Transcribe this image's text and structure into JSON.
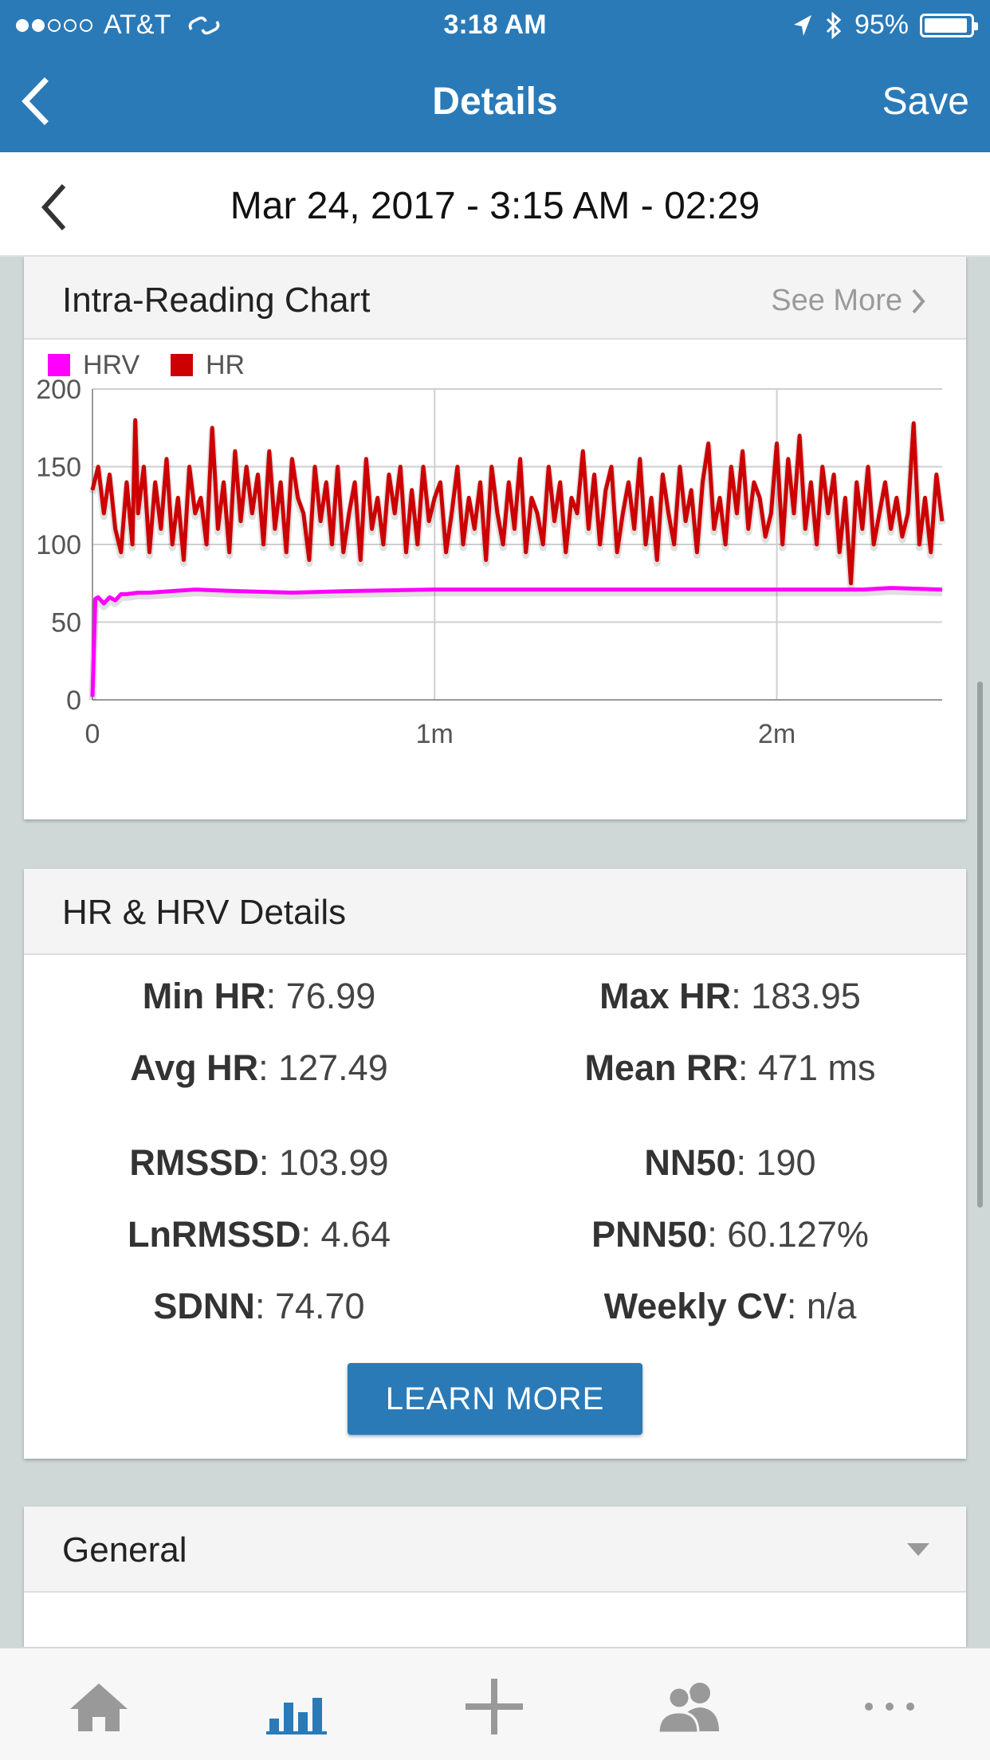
{
  "status": {
    "carrier": "AT&T",
    "time": "3:18 AM",
    "battery": "95%"
  },
  "nav": {
    "title": "Details",
    "save": "Save"
  },
  "reading": {
    "date": "Mar 24, 2017 - 3:15 AM - 02:29"
  },
  "chart_card": {
    "title": "Intra-Reading Chart",
    "see_more": "See More"
  },
  "chart_data": {
    "type": "line",
    "title": "",
    "xlabel": "",
    "ylabel": "",
    "ylim": [
      0,
      200
    ],
    "xlim_seconds": [
      0,
      149
    ],
    "yticks": [
      "0",
      "50",
      "100",
      "150",
      "200"
    ],
    "xticks": [
      {
        "t": 0,
        "label": "0"
      },
      {
        "t": 60,
        "label": "1m"
      },
      {
        "t": 120,
        "label": "2m"
      }
    ],
    "grid": true,
    "legend": "top-left",
    "series": [
      {
        "name": "HRV",
        "color": "#ff00ff",
        "x": [
          0,
          0.5,
          1,
          2,
          3,
          4,
          5,
          6,
          8,
          10,
          14,
          18,
          25,
          35,
          45,
          60,
          80,
          100,
          120,
          135,
          140,
          149
        ],
        "values": [
          2,
          65,
          66,
          62,
          66,
          64,
          68,
          68,
          69,
          69,
          70,
          71,
          70,
          69,
          70,
          71,
          71,
          71,
          71,
          71,
          72,
          71
        ]
      },
      {
        "name": "HR",
        "color": "#cc0000",
        "x": [
          0,
          1,
          2,
          3,
          4,
          5,
          6,
          7,
          7.5,
          8,
          9,
          10,
          11,
          12,
          13,
          14,
          15,
          16,
          17,
          18,
          19,
          20,
          21,
          22,
          23,
          24,
          25,
          26,
          27,
          28,
          29,
          30,
          31,
          32,
          33,
          34,
          35,
          36,
          37,
          38,
          39,
          40,
          41,
          42,
          43,
          44,
          45,
          46,
          47,
          48,
          49,
          50,
          51,
          52,
          53,
          54,
          55,
          56,
          57,
          58,
          59,
          60,
          61,
          62,
          63,
          64,
          65,
          66,
          67,
          68,
          69,
          70,
          71,
          72,
          73,
          74,
          75,
          76,
          77,
          78,
          79,
          80,
          81,
          82,
          83,
          84,
          85,
          86,
          87,
          88,
          89,
          90,
          91,
          92,
          93,
          94,
          95,
          96,
          97,
          98,
          99,
          100,
          101,
          102,
          103,
          104,
          105,
          106,
          107,
          108,
          109,
          110,
          111,
          112,
          113,
          114,
          115,
          116,
          117,
          118,
          119,
          120,
          121,
          122,
          123,
          124,
          125,
          126,
          127,
          128,
          129,
          130,
          131,
          132,
          133,
          134,
          135,
          136,
          137,
          138,
          139,
          140,
          141,
          142,
          143,
          144,
          145,
          146,
          147,
          148,
          149
        ],
        "values": [
          135,
          150,
          120,
          145,
          110,
          95,
          140,
          100,
          180,
          120,
          150,
          95,
          140,
          110,
          155,
          100,
          130,
          90,
          150,
          120,
          130,
          100,
          175,
          110,
          140,
          95,
          160,
          115,
          150,
          120,
          145,
          100,
          160,
          110,
          140,
          95,
          155,
          130,
          120,
          90,
          150,
          115,
          140,
          100,
          150,
          95,
          120,
          140,
          90,
          155,
          110,
          130,
          100,
          145,
          120,
          150,
          95,
          135,
          100,
          150,
          115,
          130,
          140,
          95,
          120,
          150,
          100,
          130,
          110,
          140,
          90,
          150,
          120,
          100,
          140,
          110,
          155,
          95,
          130,
          120,
          100,
          150,
          115,
          140,
          95,
          130,
          120,
          160,
          110,
          145,
          100,
          135,
          150,
          95,
          120,
          140,
          110,
          155,
          100,
          130,
          90,
          145,
          120,
          100,
          150,
          115,
          135,
          95,
          140,
          165,
          110,
          130,
          100,
          150,
          120,
          160,
          110,
          140,
          130,
          105,
          120,
          165,
          100,
          155,
          120,
          170,
          110,
          140,
          100,
          150,
          120,
          145,
          95,
          130,
          75,
          140,
          110,
          150,
          100,
          120,
          140,
          110,
          130,
          105,
          120,
          178,
          100,
          130,
          95,
          145,
          115
        ]
      }
    ]
  },
  "details_card": {
    "title": "HR & HRV Details",
    "stats": [
      {
        "label": "Min HR",
        "value": ": 76.99"
      },
      {
        "label": "Max HR",
        "value": ": 183.95"
      },
      {
        "label": "Avg HR",
        "value": ": 127.49"
      },
      {
        "label": "Mean RR",
        "value": ": 471 ms"
      },
      {
        "label": "RMSSD",
        "value": ": 103.99"
      },
      {
        "label": "NN50",
        "value": ": 190"
      },
      {
        "label": "LnRMSSD",
        "value": ": 4.64"
      },
      {
        "label": "PNN50",
        "value": ": 60.127%"
      },
      {
        "label": "SDNN",
        "value": ": 74.70"
      },
      {
        "label": "Weekly CV",
        "value": ": n/a"
      }
    ],
    "learn_more": "LEARN MORE"
  },
  "general_card": {
    "title": "General"
  },
  "tabbar": {
    "icons": [
      "home-icon",
      "bar-chart-icon",
      "plus-icon",
      "people-icon",
      "more-icon"
    ]
  }
}
